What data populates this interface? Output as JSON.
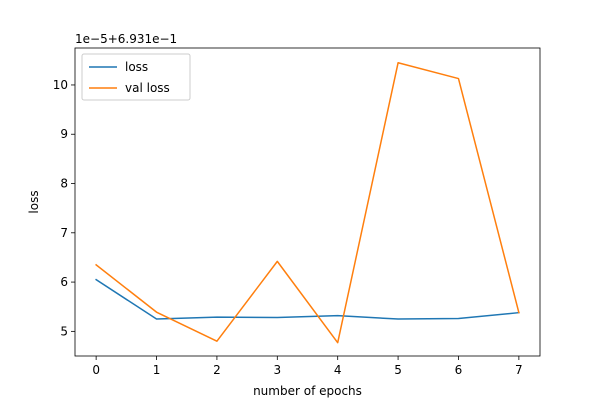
{
  "chart_data": {
    "type": "line",
    "title": "",
    "xlabel": "number of epochs",
    "ylabel": "loss",
    "y_offset_label": "1e−5+6.931e−1",
    "x": [
      0,
      1,
      2,
      3,
      4,
      5,
      6,
      7
    ],
    "xlim": [
      -0.35,
      7.35
    ],
    "ylim": [
      4.5,
      10.75
    ],
    "xticks": [
      0,
      1,
      2,
      3,
      4,
      5,
      6,
      7
    ],
    "yticks": [
      5,
      6,
      7,
      8,
      9,
      10
    ],
    "series": [
      {
        "name": "loss",
        "color": "#1f77b4",
        "values": [
          6.05,
          5.25,
          5.29,
          5.28,
          5.32,
          5.25,
          5.26,
          5.38
        ]
      },
      {
        "name": "val loss",
        "color": "#ff7f0e",
        "values": [
          6.35,
          5.39,
          4.8,
          6.42,
          4.77,
          10.45,
          10.13,
          5.38
        ]
      }
    ],
    "legend": {
      "location": "upper left",
      "entries": [
        "loss",
        "val loss"
      ]
    },
    "grid": false
  }
}
